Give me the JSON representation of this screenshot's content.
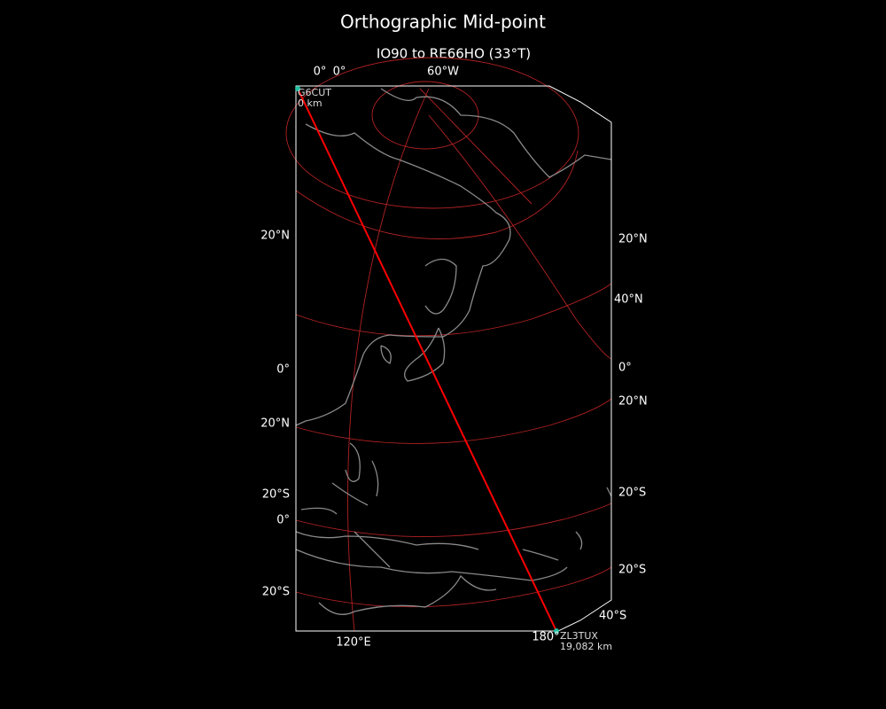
{
  "header": {
    "title": "Orthographic Mid-point",
    "subtitle": "IO90 to RE66HO (33°T)"
  },
  "labels": {
    "top": [
      "0°",
      "0°",
      "60°W"
    ],
    "left": [
      "20°N",
      "0°",
      "20°N",
      "20°S",
      "0°",
      "20°S"
    ],
    "right": [
      "20°N",
      "40°N",
      "0°",
      "20°N",
      "20°S",
      "20°S",
      "40°S"
    ],
    "bottom": [
      "120°E",
      "180°"
    ]
  },
  "path": {
    "start": {
      "call": "G6CUT",
      "distance": "0 km"
    },
    "end": {
      "call": "ZL3TUX",
      "distance": "19,082 km"
    }
  }
}
